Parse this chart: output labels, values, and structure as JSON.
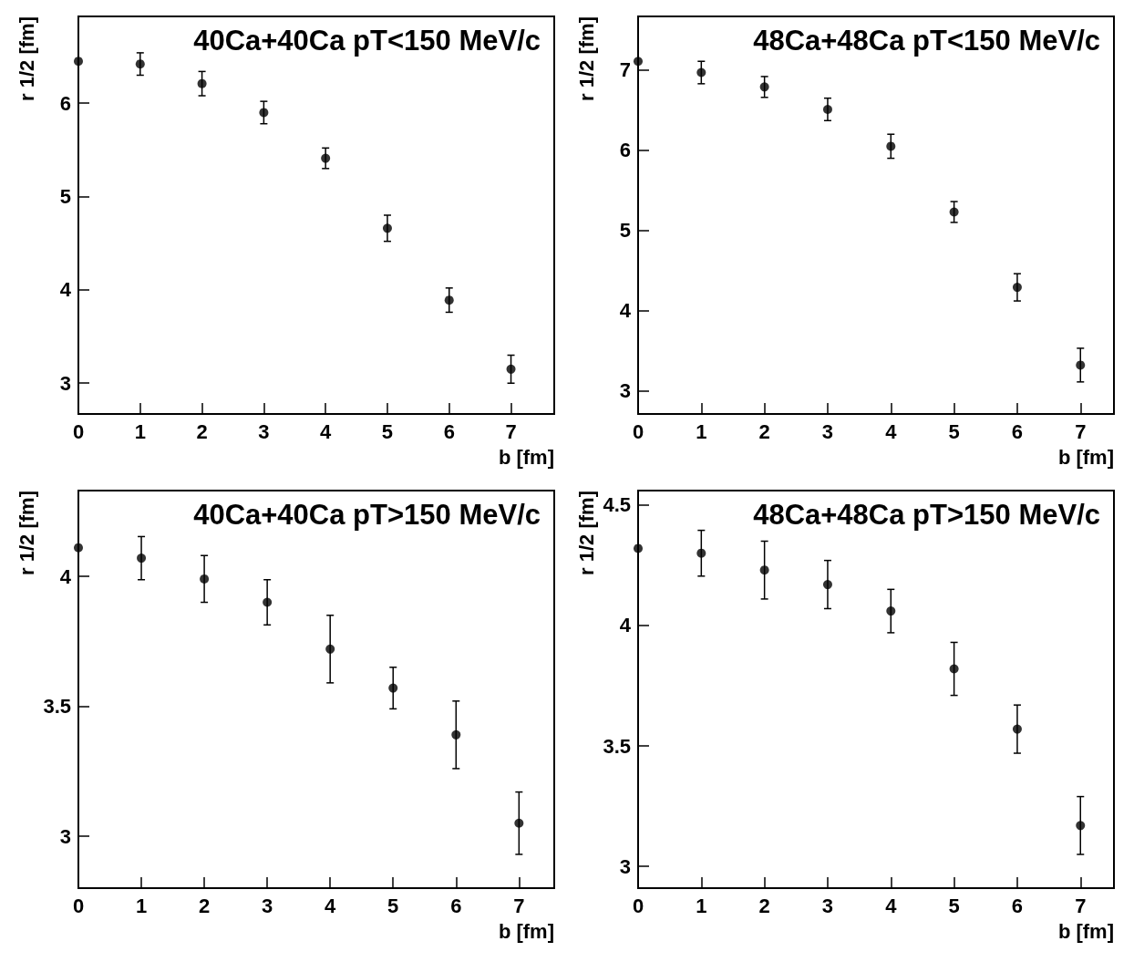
{
  "chart_data": [
    {
      "type": "scatter",
      "title": "40Ca+40Ca pT<150 MeV/c",
      "xlabel": "b [fm]",
      "ylabel": "r 1/2 [fm]",
      "x": [
        0,
        1,
        2,
        3,
        4,
        5,
        6,
        7
      ],
      "marker": "circle",
      "series": [
        {
          "color": "#000000",
          "values": [
            6.45,
            6.42,
            6.21,
            5.9,
            5.41,
            4.66,
            3.89,
            3.15
          ],
          "errors": [
            null,
            0.12,
            0.13,
            0.12,
            0.11,
            0.14,
            0.13,
            0.15
          ]
        }
      ],
      "xlim": [
        0,
        7.7
      ],
      "ylim": [
        2.67,
        6.93
      ],
      "xticks": [
        0,
        1,
        2,
        3,
        4,
        5,
        6,
        7
      ],
      "yticks": [
        3,
        4,
        5,
        6
      ]
    },
    {
      "type": "scatter",
      "title": "48Ca+48Ca pT<150 MeV/c",
      "xlabel": "b [fm]",
      "ylabel": "r 1/2 [fm]",
      "x": [
        0,
        1,
        2,
        3,
        4,
        5,
        6,
        7
      ],
      "marker": "circle",
      "series": [
        {
          "color": "#000000",
          "values": [
            7.11,
            6.97,
            6.79,
            6.51,
            6.05,
            5.23,
            4.29,
            3.32
          ],
          "errors": [
            null,
            0.14,
            0.13,
            0.14,
            0.15,
            0.13,
            0.17,
            0.21
          ]
        }
      ],
      "xlim": [
        0,
        7.53
      ],
      "ylim": [
        2.71,
        7.67
      ],
      "xticks": [
        0,
        1,
        2,
        3,
        4,
        5,
        6,
        7
      ],
      "yticks": [
        3,
        4,
        5,
        6,
        7
      ]
    },
    {
      "type": "scatter",
      "title": "40Ca+40Ca pT>150 MeV/c",
      "xlabel": "b [fm]",
      "ylabel": "r 1/2 [fm]",
      "x": [
        0,
        1,
        2,
        3,
        4,
        5,
        6,
        7
      ],
      "marker": "circle",
      "series": [
        {
          "color": "#000000",
          "values": [
            4.11,
            4.07,
            3.99,
            3.9,
            3.72,
            3.57,
            3.39,
            3.05
          ],
          "errors": [
            null,
            0.083,
            0.09,
            0.087,
            0.13,
            0.08,
            0.13,
            0.12
          ]
        }
      ],
      "xlim": [
        0,
        7.56
      ],
      "ylim": [
        2.8,
        4.33
      ],
      "xticks": [
        0,
        1,
        2,
        3,
        4,
        5,
        6,
        7
      ],
      "yticks": [
        3,
        3.5,
        4
      ]
    },
    {
      "type": "scatter",
      "title": "48Ca+48Ca pT>150 MeV/c",
      "xlabel": "b [fm]",
      "ylabel": "r 1/2 [fm]",
      "x": [
        0,
        1,
        2,
        3,
        4,
        5,
        6,
        7
      ],
      "marker": "circle",
      "series": [
        {
          "color": "#000000",
          "values": [
            4.32,
            4.3,
            4.23,
            4.17,
            4.06,
            3.82,
            3.57,
            3.17
          ],
          "errors": [
            null,
            0.095,
            0.12,
            0.1,
            0.09,
            0.11,
            0.1,
            0.12
          ]
        }
      ],
      "xlim": [
        0,
        7.53
      ],
      "ylim": [
        2.91,
        4.56
      ],
      "xticks": [
        0,
        1,
        2,
        3,
        4,
        5,
        6,
        7
      ],
      "yticks": [
        3,
        3.5,
        4,
        4.5
      ]
    }
  ]
}
